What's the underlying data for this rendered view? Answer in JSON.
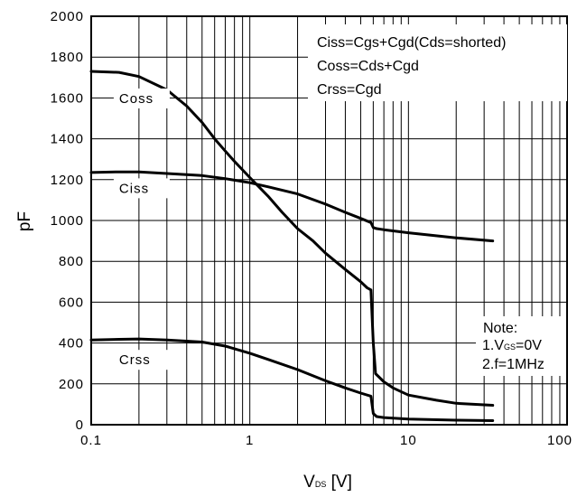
{
  "chart_data": {
    "type": "line",
    "title": "",
    "xlabel": {
      "main": "V",
      "subscript": "DS",
      "unit": " [V]"
    },
    "ylabel": "pF",
    "x_scale": "log",
    "xlim": [
      0.1,
      100
    ],
    "ylim": [
      0,
      2000
    ],
    "y_ticks": [
      0,
      200,
      400,
      600,
      800,
      1000,
      1200,
      1400,
      1600,
      1800,
      2000
    ],
    "y_tick_labels": [
      "0",
      "200",
      "400",
      "600",
      "800",
      "1000",
      "1200",
      "1400",
      "1600",
      "1800",
      "2000"
    ],
    "x_ticks": [
      0.1,
      1,
      10,
      100
    ],
    "x_tick_labels": [
      "0.1",
      "1",
      "10",
      "100"
    ],
    "grid": true,
    "series": [
      {
        "name": "Coss",
        "label_at": [
          0.15,
          1580
        ],
        "x": [
          0.1,
          0.15,
          0.2,
          0.3,
          0.4,
          0.5,
          0.6,
          0.7,
          0.8,
          1.0,
          1.3,
          1.6,
          2.0,
          2.5,
          3.0,
          4.0,
          5.0,
          5.5,
          5.8,
          6.0,
          6.2,
          7.0,
          8.0,
          10.0,
          15.0,
          20.0,
          34.0
        ],
        "values": [
          1730,
          1725,
          1705,
          1640,
          1560,
          1480,
          1400,
          1340,
          1290,
          1210,
          1120,
          1040,
          960,
          900,
          840,
          760,
          700,
          670,
          660,
          400,
          250,
          210,
          180,
          145,
          120,
          105,
          95
        ]
      },
      {
        "name": "Ciss",
        "label_at": [
          0.15,
          1140
        ],
        "x": [
          0.1,
          0.15,
          0.2,
          0.3,
          0.5,
          0.7,
          1.0,
          1.3,
          2.0,
          3.0,
          4.0,
          5.0,
          5.8,
          6.0,
          6.3,
          7.0,
          10.0,
          20.0,
          34.0
        ],
        "values": [
          1235,
          1238,
          1238,
          1230,
          1220,
          1205,
          1185,
          1165,
          1130,
          1080,
          1040,
          1010,
          990,
          965,
          960,
          955,
          940,
          915,
          900
        ]
      },
      {
        "name": "Crss",
        "label_at": [
          0.15,
          300
        ],
        "x": [
          0.1,
          0.15,
          0.2,
          0.3,
          0.5,
          0.7,
          1.0,
          1.3,
          2.0,
          3.0,
          4.0,
          5.0,
          5.8,
          6.0,
          6.3,
          7.0,
          10.0,
          20.0,
          34.0
        ],
        "values": [
          415,
          418,
          420,
          415,
          405,
          385,
          350,
          320,
          270,
          215,
          180,
          155,
          140,
          55,
          40,
          35,
          28,
          22,
          20
        ]
      }
    ],
    "legend_box": {
      "placement": "top-right",
      "lines": [
        "Ciss=Cgs+Cgd(Cds=shorted)",
        "Coss=Cds+Cgd",
        "Crss=Cgd"
      ]
    },
    "note_box": {
      "placement": "right",
      "title": "Note:",
      "line1": {
        "prefix": "1.V",
        "subscript": "GS",
        "suffix": "=0V"
      },
      "line2": "2.f=1MHz"
    }
  }
}
